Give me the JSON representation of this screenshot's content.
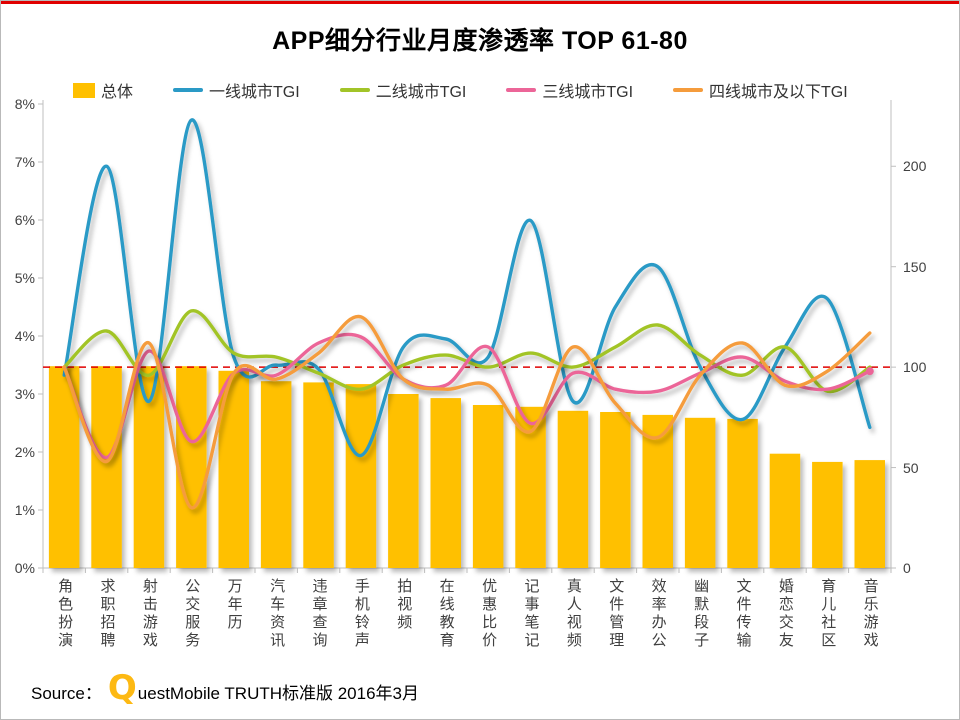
{
  "page": {
    "title": "APP细分行业月度渗透率 TOP 61-80",
    "source_prefix": "Source：",
    "source_logo_letter": "Q",
    "source_rest": "uestMobile TRUTH标准版 2016年3月"
  },
  "colors": {
    "bar": "#FFC000",
    "tier1": "#2A9AC6",
    "tier2": "#A2C428",
    "tier3": "#EC6598",
    "tier4": "#F59C3C",
    "reference": "#E00000",
    "axis_line": "#BFBFBF",
    "axis_text": "#404040",
    "accent_bar": "#E00000"
  },
  "legend": [
    {
      "label": "总体",
      "color": "#FFC000",
      "type": "square"
    },
    {
      "label": "一线城市TGI",
      "color": "#2A9AC6",
      "type": "line"
    },
    {
      "label": "二线城市TGI",
      "color": "#A2C428",
      "type": "line"
    },
    {
      "label": "三线城市TGI",
      "color": "#EC6598",
      "type": "line"
    },
    {
      "label": "四线城市及以下TGI",
      "color": "#F59C3C",
      "type": "line"
    }
  ],
  "chart_data": {
    "type": "bar+line",
    "title": "APP细分行业月度渗透率 TOP 61-80",
    "categories": [
      "角色扮演",
      "求职招聘",
      "射击游戏",
      "公交服务",
      "万年历",
      "汽车资讯",
      "违章查询",
      "手机铃声",
      "拍视频",
      "在线教育",
      "优惠比价",
      "记事笔记",
      "真人视频",
      "文件管理",
      "效率办公",
      "幽默段子",
      "文件传输",
      "婚恋交友",
      "育儿社区",
      "音乐游戏"
    ],
    "bar_series": {
      "name": "总体",
      "unit": "%",
      "axis": "left",
      "values": [
        3.48,
        3.48,
        3.48,
        3.48,
        3.4,
        3.22,
        3.2,
        3.17,
        3.0,
        2.93,
        2.81,
        2.78,
        2.71,
        2.69,
        2.64,
        2.59,
        2.57,
        1.97,
        1.83,
        1.86
      ]
    },
    "line_series": [
      {
        "name": "一线城市TGI",
        "axis": "right",
        "color": "#2A9AC6",
        "values": [
          96,
          200,
          83,
          223,
          105,
          101,
          99,
          56,
          110,
          114,
          105,
          173,
          83,
          130,
          150,
          100,
          74,
          110,
          134,
          70
        ]
      },
      {
        "name": "二线城市TGI",
        "axis": "right",
        "color": "#A2C428",
        "values": [
          100,
          118,
          96,
          128,
          107,
          105,
          97,
          89,
          101,
          106,
          100,
          107,
          100,
          110,
          121,
          106,
          96,
          110,
          88,
          100
        ]
      },
      {
        "name": "三线城市TGI",
        "axis": "right",
        "color": "#EC6598",
        "end_marker": true,
        "values": [
          100,
          55,
          108,
          63,
          97,
          96,
          112,
          115,
          94,
          91,
          110,
          72,
          97,
          89,
          88,
          97,
          105,
          93,
          89,
          98
        ]
      },
      {
        "name": "四线城市及以下TGI",
        "axis": "right",
        "color": "#F59C3C",
        "values": [
          100,
          53,
          112,
          30,
          97,
          94,
          107,
          125,
          94,
          89,
          91,
          68,
          110,
          82,
          65,
          96,
          112,
          91,
          98,
          117
        ]
      }
    ],
    "left_axis": {
      "min": 0,
      "max": 8,
      "ticks": [
        "0%",
        "1%",
        "2%",
        "3%",
        "4%",
        "5%",
        "6%",
        "7%",
        "8%"
      ]
    },
    "right_axis": {
      "min": 0,
      "plot_max": 231,
      "ticks": [
        0,
        50,
        100,
        150,
        200
      ]
    },
    "reference_line": {
      "value": 100,
      "axis": "right",
      "style": "dashed",
      "color": "#E00000"
    },
    "grid": "off",
    "legend_position": "top"
  }
}
